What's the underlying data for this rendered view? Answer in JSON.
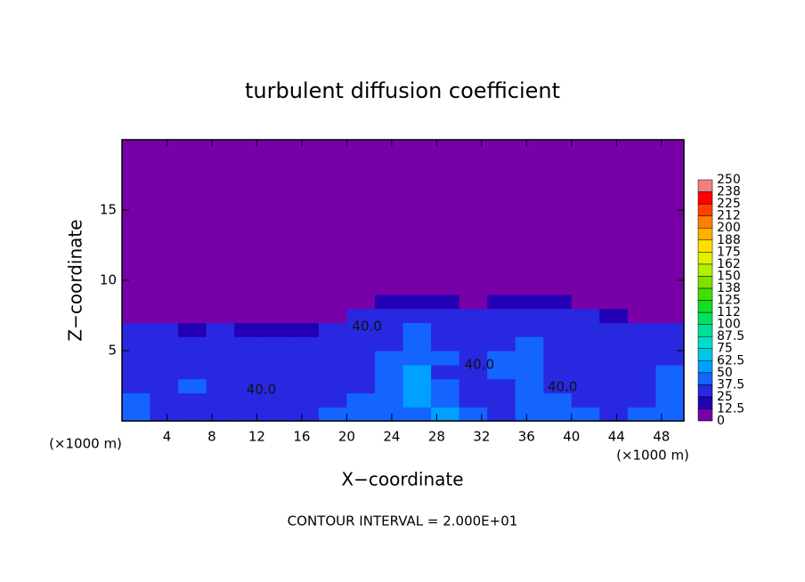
{
  "chart_data": {
    "type": "contour",
    "title": "turbulent diffusion coefficient",
    "xlabel": "X−coordinate",
    "ylabel": "Z−coordinate",
    "x_unit": "(×1000 m)",
    "footnote": "CONTOUR INTERVAL = 2.000E+01",
    "xlim": [
      0,
      50
    ],
    "ylim": [
      0,
      20
    ],
    "xticks": [
      4,
      8,
      12,
      16,
      20,
      24,
      28,
      32,
      36,
      40,
      44,
      48
    ],
    "yticks": [
      5,
      10,
      15
    ],
    "x_edges": [
      0,
      2.5,
      5,
      7.5,
      10,
      12.5,
      15,
      17.5,
      20,
      22.5,
      25,
      27.5,
      30,
      32.5,
      35,
      37.5,
      40,
      42.5,
      45,
      47.5,
      50
    ],
    "z_edges": [
      0,
      1,
      2,
      3,
      4,
      5,
      6,
      7,
      8,
      9,
      20
    ],
    "field": [
      [
        40,
        35,
        30,
        35,
        30,
        30,
        35,
        40,
        45,
        40,
        45,
        50,
        40,
        35,
        40,
        45,
        40,
        35,
        40,
        45
      ],
      [
        45,
        35,
        30,
        30,
        30,
        25,
        30,
        35,
        40,
        45,
        50,
        45,
        35,
        30,
        40,
        45,
        35,
        30,
        35,
        40
      ],
      [
        35,
        30,
        45,
        30,
        25,
        30,
        30,
        35,
        30,
        40,
        55,
        40,
        30,
        35,
        45,
        30,
        25,
        30,
        35,
        45
      ],
      [
        30,
        25,
        35,
        30,
        25,
        25,
        30,
        35,
        30,
        40,
        50,
        35,
        30,
        45,
        40,
        30,
        25,
        30,
        35,
        40
      ],
      [
        30,
        25,
        30,
        35,
        30,
        25,
        30,
        30,
        35,
        40,
        45,
        40,
        30,
        40,
        45,
        30,
        25,
        30,
        30,
        35
      ],
      [
        25,
        30,
        25,
        30,
        25,
        25,
        25,
        30,
        30,
        35,
        45,
        35,
        30,
        35,
        40,
        35,
        30,
        30,
        35,
        30
      ],
      [
        25,
        25,
        20,
        25,
        20,
        15,
        15,
        25,
        30,
        35,
        40,
        35,
        30,
        35,
        35,
        35,
        30,
        30,
        25,
        25
      ],
      [
        5,
        0,
        0,
        0,
        0,
        0,
        0,
        0,
        25,
        30,
        35,
        30,
        25,
        30,
        30,
        30,
        25,
        20,
        5,
        0
      ],
      [
        0,
        0,
        0,
        0,
        0,
        0,
        0,
        0,
        10,
        20,
        20,
        15,
        10,
        20,
        20,
        15,
        10,
        5,
        0,
        0
      ],
      [
        0,
        0,
        0,
        0,
        0,
        0,
        0,
        0,
        0,
        0,
        0,
        0,
        0,
        0,
        0,
        0,
        0,
        0,
        0,
        0
      ]
    ],
    "levels": [
      0,
      12.5,
      25,
      37.5,
      50,
      62.5,
      75,
      87.5,
      100,
      112,
      125,
      138,
      150,
      162,
      175,
      188,
      200,
      212,
      225,
      238,
      250
    ],
    "colors": [
      "#7800a8",
      "#2400b4",
      "#2828e0",
      "#1464ff",
      "#00a0ff",
      "#00c8e6",
      "#00e0c8",
      "#00e096",
      "#00e064",
      "#10e020",
      "#40e000",
      "#80e000",
      "#b0f000",
      "#e0f000",
      "#ffe000",
      "#ffb000",
      "#ff8000",
      "#ff4000",
      "#ff0000",
      "#f08080"
    ],
    "contour_labels": [
      {
        "text": "40.0",
        "x": 12.4,
        "z": 2.2
      },
      {
        "text": "40.0",
        "x": 21.8,
        "z": 6.7
      },
      {
        "text": "40.0",
        "x": 31.8,
        "z": 4.0
      },
      {
        "text": "40.0",
        "x": 39.2,
        "z": 2.4
      }
    ]
  }
}
